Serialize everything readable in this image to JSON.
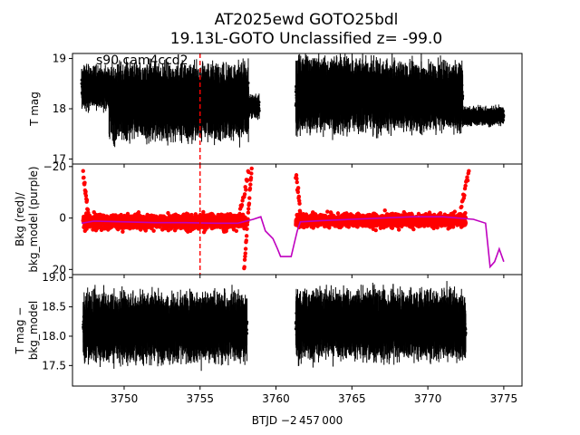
{
  "chart_data": {
    "type": "scatter",
    "title_line1": "AT2025ewd  GOTO25bdl",
    "title_line2": "19.13L-GOTO Unclassified z= -99.0",
    "xlabel": "BTJD −2 457 000",
    "xlim": [
      3746.6,
      3776.2
    ],
    "x_ticks": [
      3750,
      3755,
      3760,
      3765,
      3770,
      3775
    ],
    "x_tick_labels": [
      "3750",
      "3755",
      "3760",
      "3765",
      "3770",
      "3775"
    ],
    "vline_x": 3755.0,
    "vline_color": "#ff0000",
    "panels": [
      {
        "name": "tmag",
        "ylabel": "T mag",
        "ylabel_lines": [
          "T mag"
        ],
        "ylim": [
          19.1,
          16.9
        ],
        "y_ticks": [
          17,
          18,
          19
        ],
        "y_tick_labels": [
          "17",
          "18",
          "19"
        ],
        "annotation": "s90 cam4ccd2",
        "color": "#000000",
        "segments": [
          {
            "x_start": 3747.2,
            "x_end": 3749.0,
            "level": 18.42,
            "scatter": 0.22,
            "err": 0.28
          },
          {
            "x_start": 3749.0,
            "x_end": 3758.2,
            "level": 18.15,
            "scatter": 0.35,
            "err": 0.5
          },
          {
            "x_start": 3758.2,
            "x_end": 3758.9,
            "level": 18.05,
            "scatter": 0.12,
            "err": 0.15
          },
          {
            "x_start": 3761.3,
            "x_end": 3766.5,
            "level": 18.3,
            "scatter": 0.35,
            "err": 0.5
          },
          {
            "x_start": 3766.5,
            "x_end": 3772.3,
            "level": 18.25,
            "scatter": 0.35,
            "err": 0.45
          },
          {
            "x_start": 3772.3,
            "x_end": 3775.0,
            "level": 17.85,
            "scatter": 0.12,
            "err": 0.12
          }
        ]
      },
      {
        "name": "bkg",
        "ylabel": "Bkg (red)/ bkg_model (purple)",
        "ylabel_lines": [
          "Bkg (red)/",
          "bkg_model (purple)"
        ],
        "ylim": [
          -21,
          22
        ],
        "y_ticks": [
          20,
          0,
          -20
        ],
        "y_tick_labels": [
          "20",
          "0",
          "−20"
        ],
        "bkg_color": "#ff0000",
        "model_color": "#bf00bf",
        "bkg_segments": [
          {
            "x_start": 3747.3,
            "x_end": 3758.0,
            "level": 1.5,
            "scatter": 4.0
          },
          {
            "x_start": 3761.3,
            "x_end": 3772.5,
            "level": 1.0,
            "scatter": 3.6
          }
        ],
        "model_points": [
          [
            3747.2,
            2.0
          ],
          [
            3748.0,
            1.2
          ],
          [
            3750.0,
            1.5
          ],
          [
            3752.0,
            1.8
          ],
          [
            3754.0,
            1.8
          ],
          [
            3756.0,
            2.0
          ],
          [
            3757.5,
            2.0
          ],
          [
            3758.5,
            0.5
          ],
          [
            3759.0,
            -0.5
          ],
          [
            3759.3,
            5.0
          ],
          [
            3759.8,
            8.0
          ],
          [
            3760.1,
            12.0
          ],
          [
            3760.3,
            15.0
          ],
          [
            3761.0,
            15.0
          ],
          [
            3761.2,
            10.0
          ],
          [
            3761.4,
            5.0
          ],
          [
            3761.6,
            1.5
          ],
          [
            3763.0,
            1.0
          ],
          [
            3765.0,
            0.5
          ],
          [
            3767.0,
            0.0
          ],
          [
            3769.0,
            -0.5
          ],
          [
            3771.0,
            -0.5
          ],
          [
            3772.0,
            0.0
          ],
          [
            3773.0,
            0.5
          ],
          [
            3773.8,
            2.0
          ],
          [
            3774.1,
            19.0
          ],
          [
            3774.4,
            17.0
          ],
          [
            3774.7,
            12.0
          ],
          [
            3775.0,
            17.0
          ]
        ]
      },
      {
        "name": "resid",
        "ylabel": "T mag − bkg_model",
        "ylabel_lines": [
          "T mag −",
          "bkg_model"
        ],
        "ylim": [
          19.05,
          17.15
        ],
        "y_ticks": [
          17.5,
          18.0,
          18.5,
          19.0
        ],
        "y_tick_labels": [
          "17.5",
          "18.0",
          "18.5",
          "19.0"
        ],
        "color": "#000000",
        "segments": [
          {
            "x_start": 3747.3,
            "x_end": 3758.1,
            "level": 18.15,
            "scatter": 0.3,
            "err": 0.38
          },
          {
            "x_start": 3761.3,
            "x_end": 3772.5,
            "level": 18.2,
            "scatter": 0.32,
            "err": 0.38
          }
        ]
      }
    ]
  }
}
